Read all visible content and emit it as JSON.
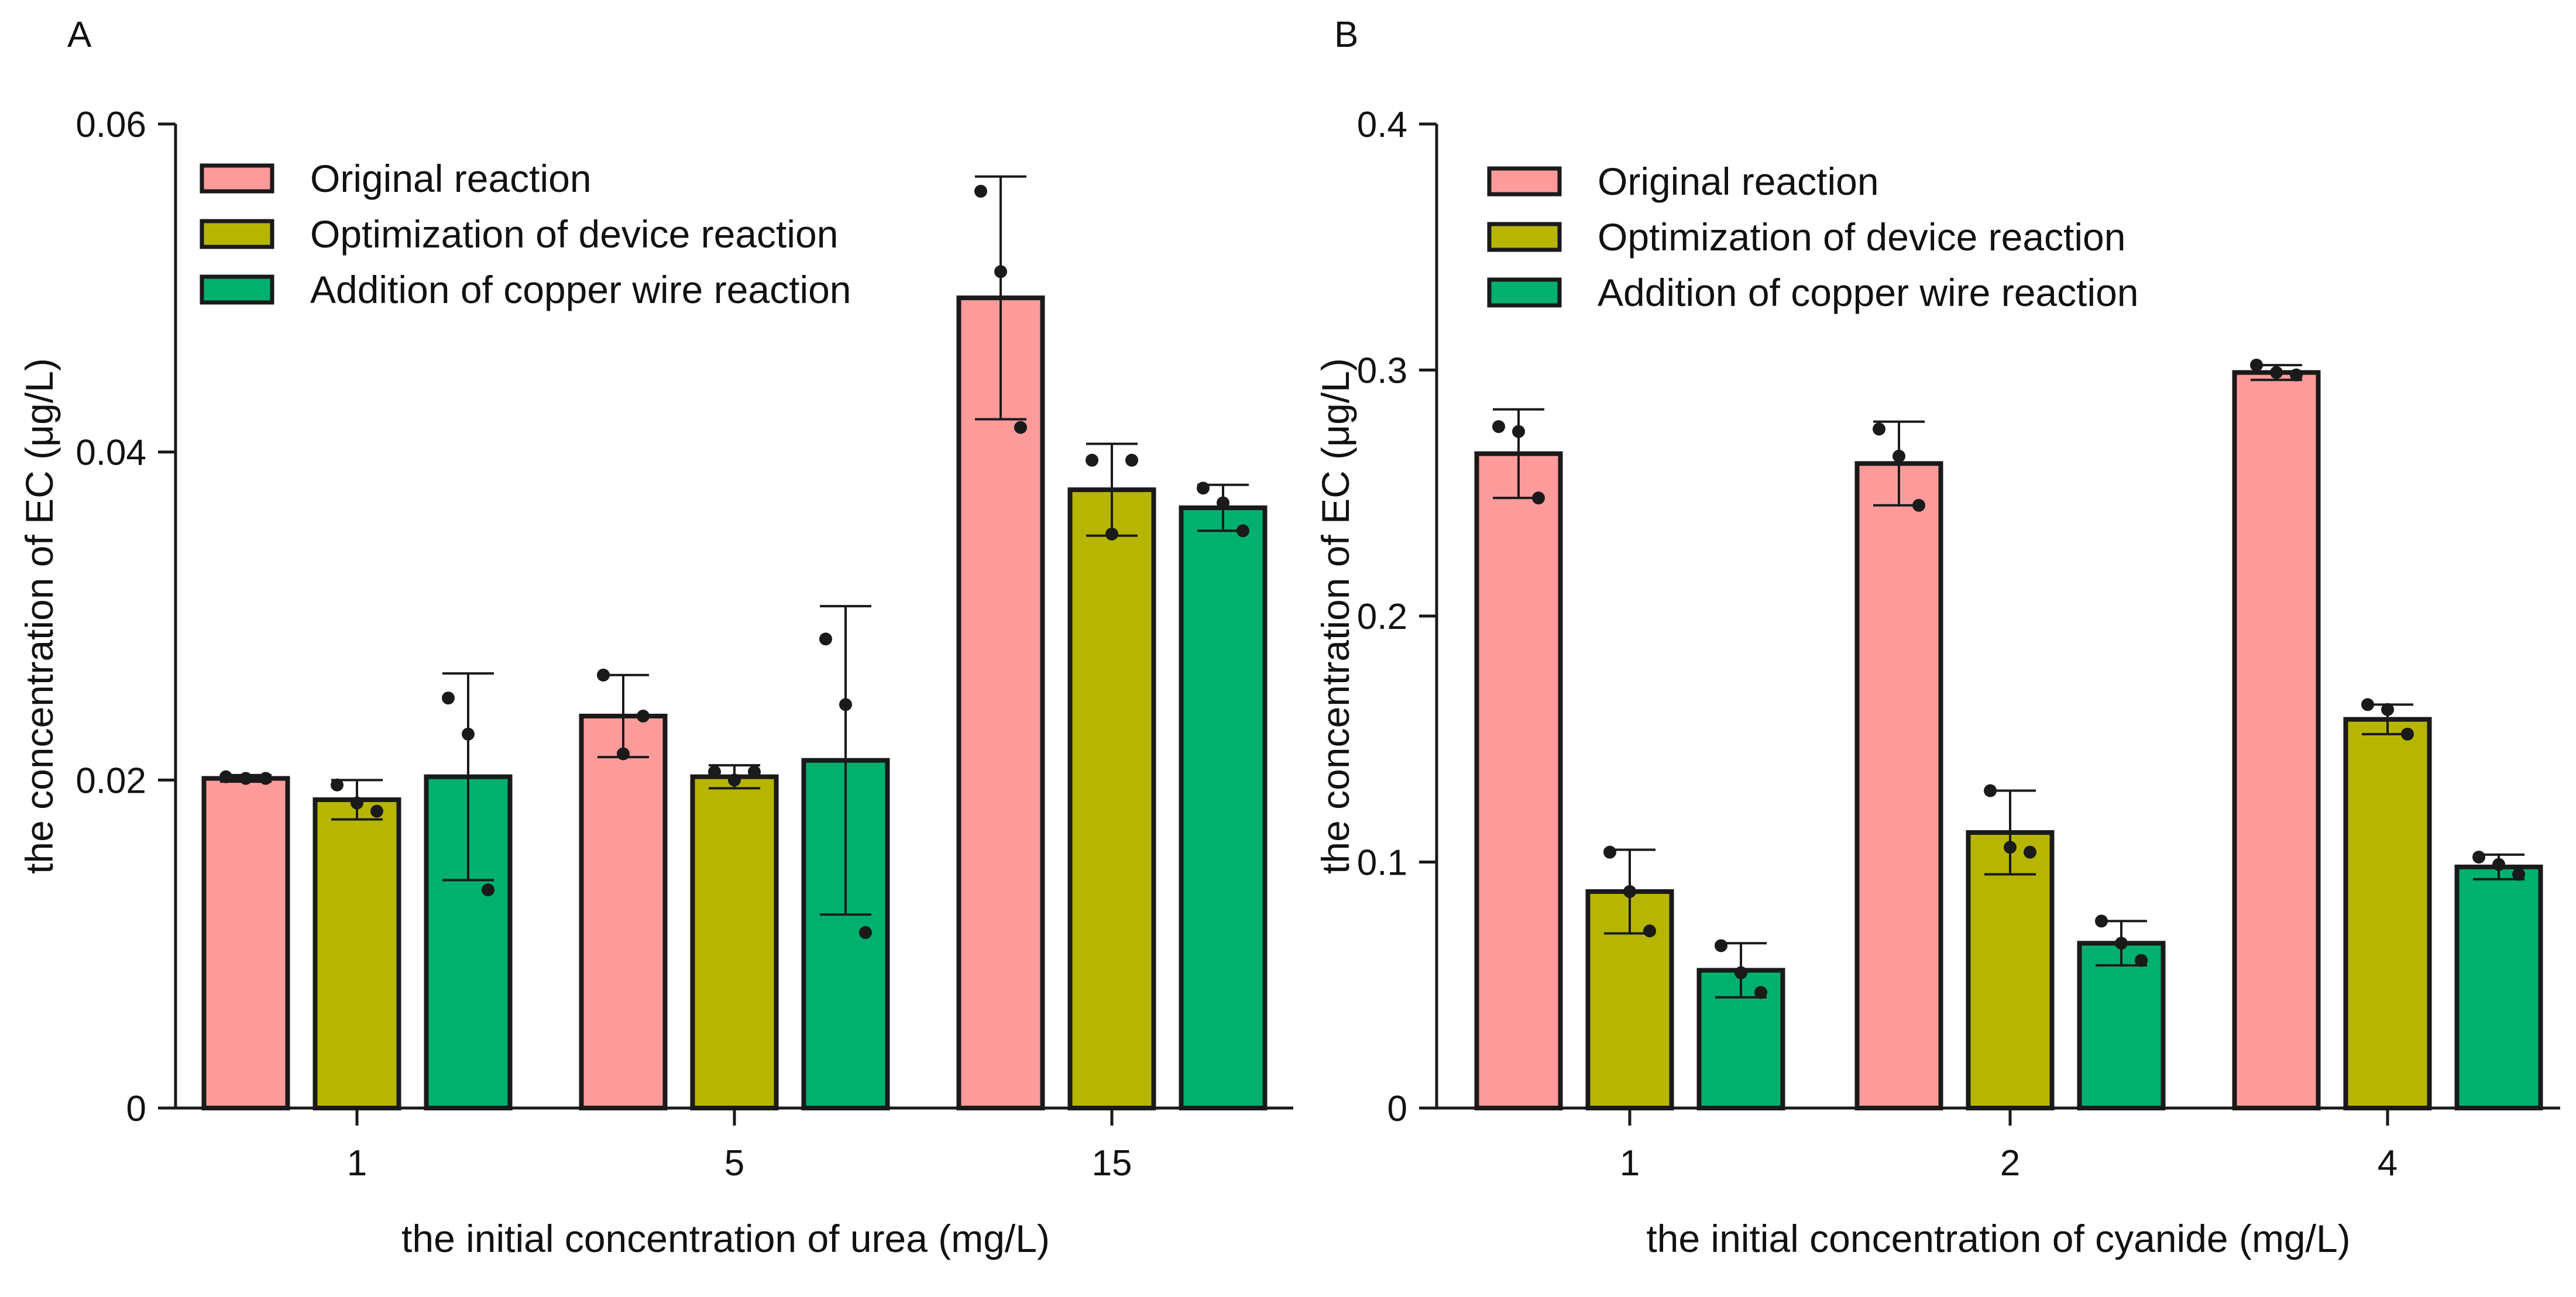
{
  "colors": {
    "original": "#FD9B9B",
    "optimization": "#B6B600",
    "copper": "#00B06E",
    "outline": "#1a1a1a",
    "dot": "#1a1a1a"
  },
  "chart_data": [
    {
      "panel_letter": "A",
      "type": "bar",
      "categories": [
        "1",
        "5",
        "15"
      ],
      "xlabel": "the initial concentration of urea (mg/L)",
      "ylabel": "the concentration of EC (μg/L)",
      "ylim": [
        0,
        0.06
      ],
      "yticks": [
        0,
        0.02,
        0.04,
        0.06
      ],
      "ytick_labels": [
        "0",
        "0.02",
        "0.04",
        "0.06"
      ],
      "legend_position": "top-left",
      "series": [
        {
          "name": "Original reaction",
          "color_key": "original",
          "values": [
            0.0201,
            0.0239,
            0.0494
          ],
          "errors": [
            0.0002,
            0.0025,
            0.0074
          ],
          "points": [
            [
              0.0202,
              0.0201,
              0.0201
            ],
            [
              0.0264,
              0.0216,
              0.0239
            ],
            [
              0.0559,
              0.051,
              0.0415
            ]
          ]
        },
        {
          "name": "Optimization of device reaction",
          "color_key": "optimization",
          "values": [
            0.0188,
            0.0202,
            0.0377
          ],
          "errors": [
            0.0012,
            0.0007,
            0.0028
          ],
          "points": [
            [
              0.0197,
              0.0186,
              0.0181
            ],
            [
              0.0205,
              0.02,
              0.0205
            ],
            [
              0.0395,
              0.035,
              0.0395
            ]
          ]
        },
        {
          "name": "Addition of copper wire reaction",
          "color_key": "copper",
          "values": [
            0.0202,
            0.0212,
            0.0366
          ],
          "errors": [
            0.0063,
            0.0094,
            0.0014
          ],
          "points": [
            [
              0.025,
              0.0228,
              0.0133
            ],
            [
              0.0286,
              0.0246,
              0.0107
            ],
            [
              0.0378,
              0.0369,
              0.0352
            ]
          ]
        }
      ]
    },
    {
      "panel_letter": "B",
      "type": "bar",
      "categories": [
        "1",
        "2",
        "4"
      ],
      "xlabel": "the initial concentration of cyanide (mg/L)",
      "ylabel": "the concentration of EC (μg/L)",
      "ylim": [
        0,
        0.4
      ],
      "yticks": [
        0,
        0.1,
        0.2,
        0.3,
        0.4
      ],
      "ytick_labels": [
        "0",
        "0.1",
        "0.2",
        "0.3",
        "0.4"
      ],
      "legend_position": "top-left",
      "series": [
        {
          "name": "Original reaction",
          "color_key": "original",
          "values": [
            0.266,
            0.262,
            0.299
          ],
          "errors": [
            0.018,
            0.017,
            0.003
          ],
          "points": [
            [
              0.277,
              0.275,
              0.248
            ],
            [
              0.276,
              0.265,
              0.245
            ],
            [
              0.302,
              0.299,
              0.298
            ]
          ]
        },
        {
          "name": "Optimization of device reaction",
          "color_key": "optimization",
          "values": [
            0.088,
            0.112,
            0.158
          ],
          "errors": [
            0.017,
            0.017,
            0.006
          ],
          "points": [
            [
              0.104,
              0.088,
              0.072
            ],
            [
              0.129,
              0.106,
              0.104
            ],
            [
              0.164,
              0.162,
              0.152
            ]
          ]
        },
        {
          "name": "Addition of copper wire reaction",
          "color_key": "copper",
          "values": [
            0.056,
            0.067,
            0.098
          ],
          "errors": [
            0.011,
            0.009,
            0.005
          ],
          "points": [
            [
              0.066,
              0.055,
              0.047
            ],
            [
              0.076,
              0.067,
              0.06
            ],
            [
              0.102,
              0.099,
              0.095
            ]
          ]
        }
      ]
    }
  ]
}
